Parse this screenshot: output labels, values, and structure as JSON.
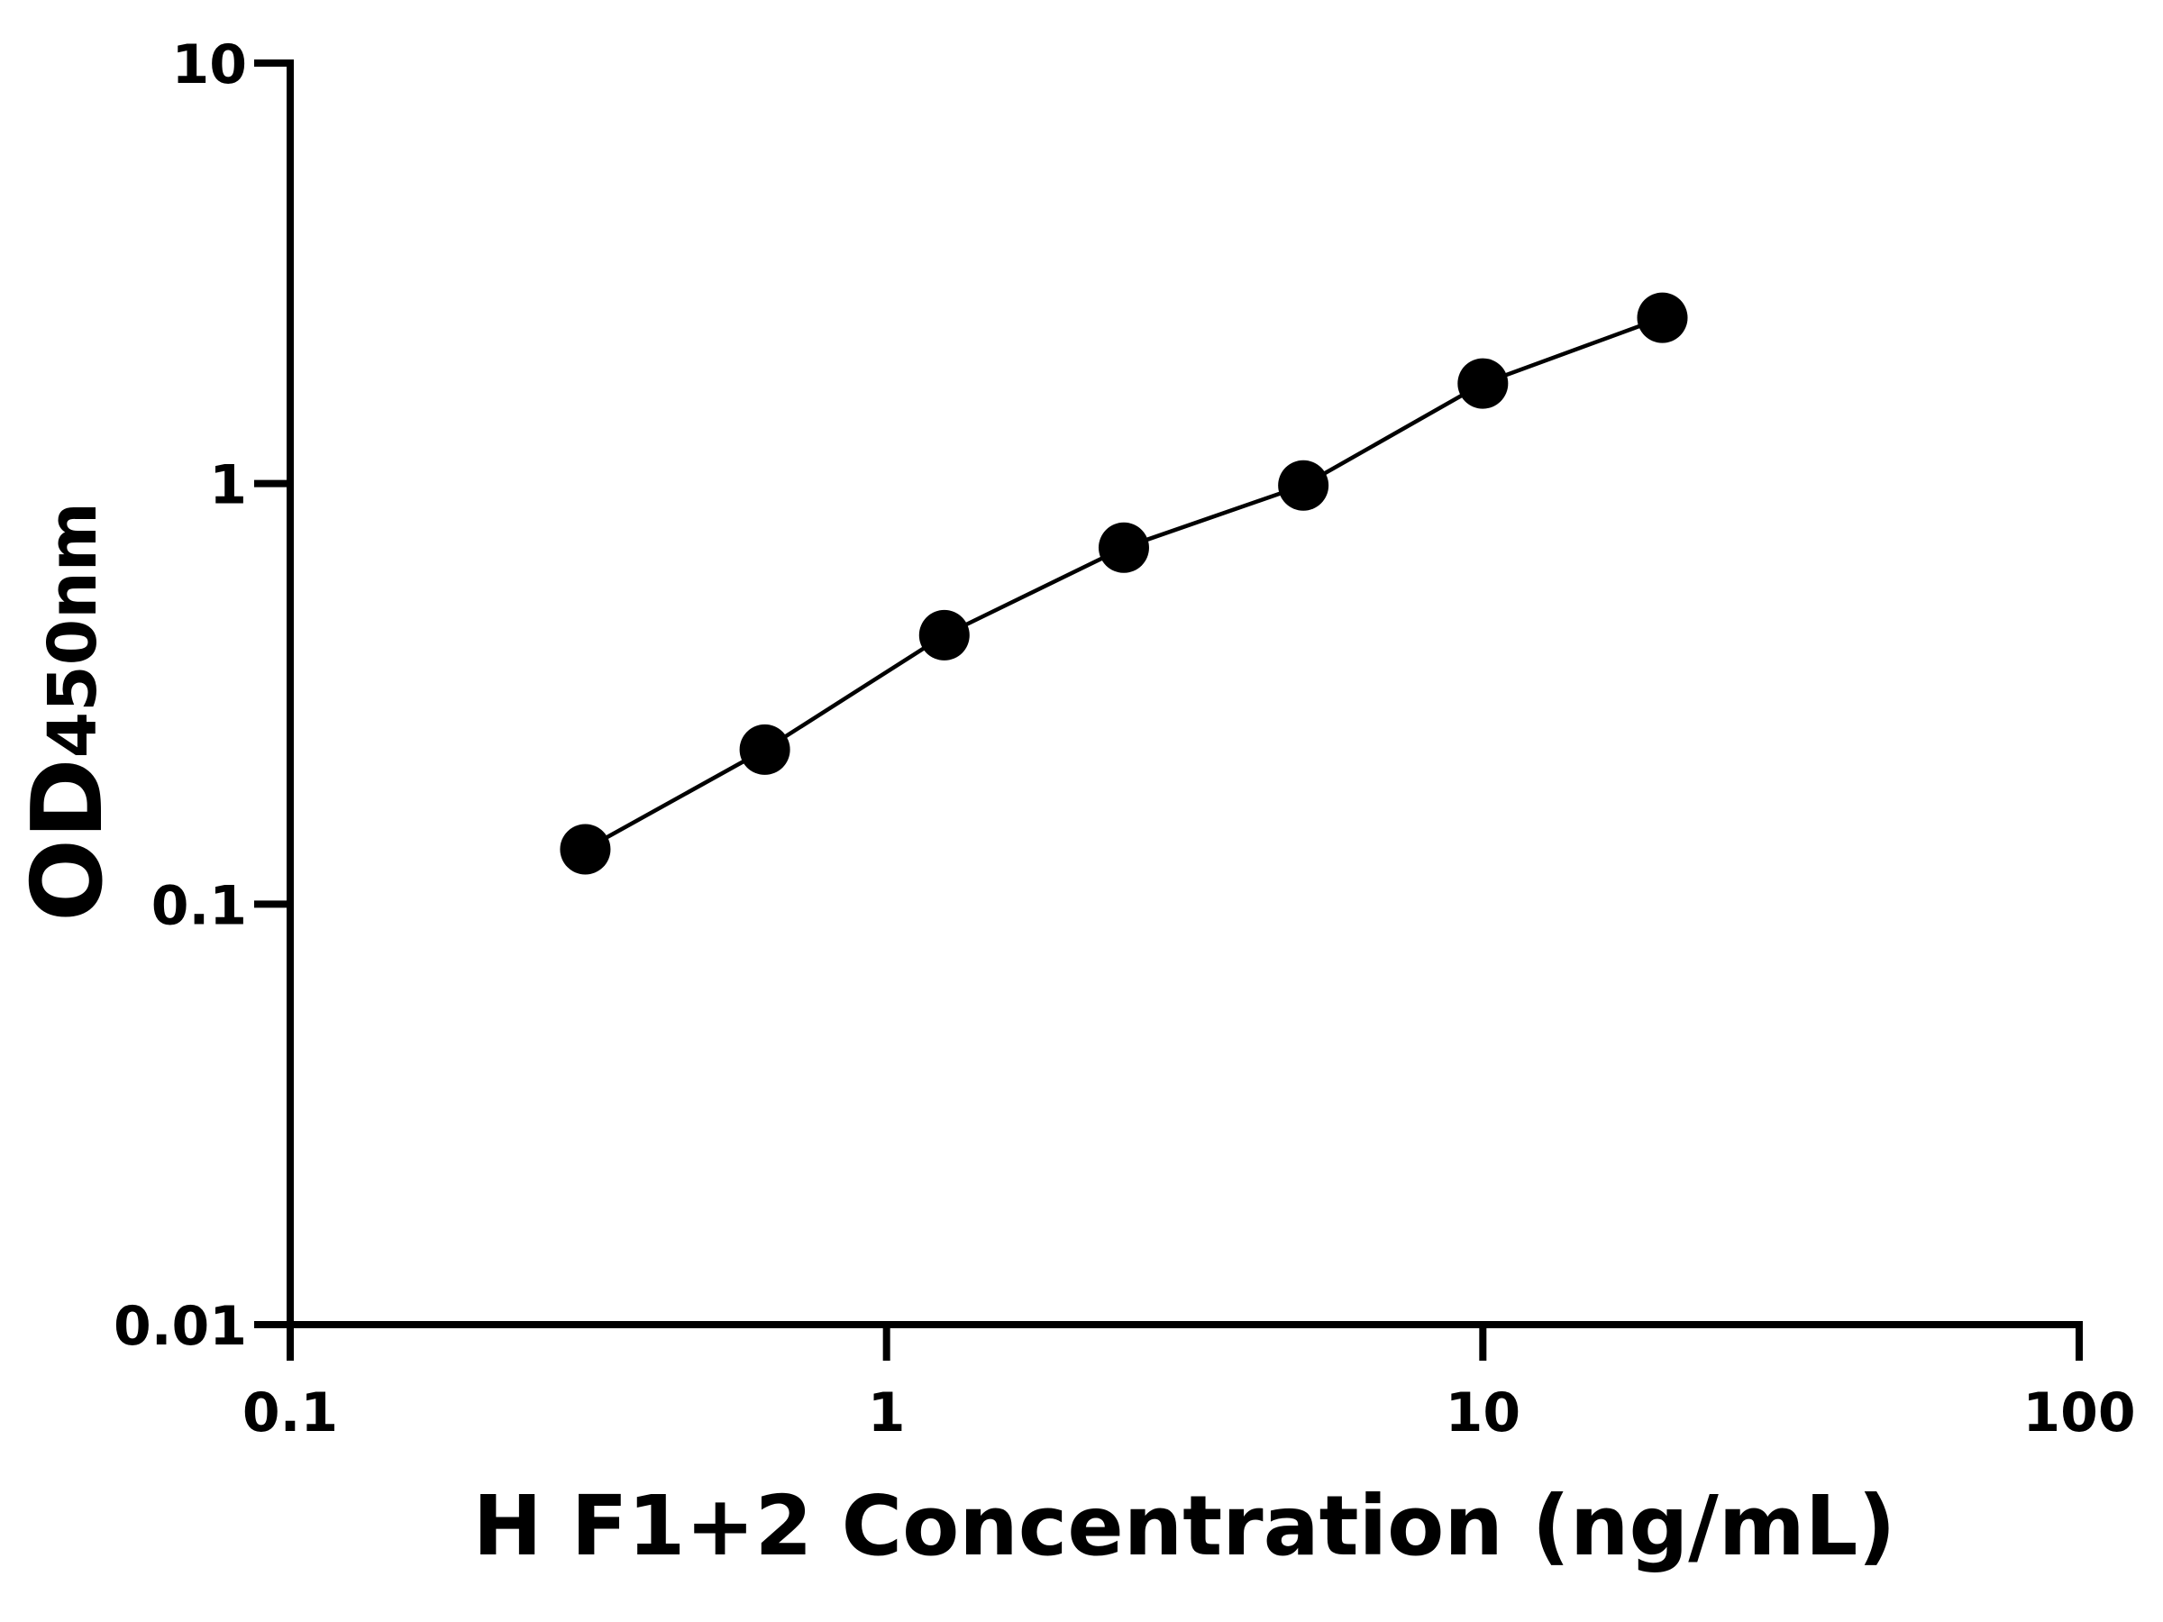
{
  "chart_data": {
    "type": "scatter",
    "x_label": "H F1+2 Concentration (ng/mL)",
    "y_label": "OD",
    "y_label_subscript": "450nm",
    "x": [
      0.3125,
      0.625,
      1.25,
      2.5,
      5,
      10,
      20
    ],
    "series": [
      {
        "color": "#000000",
        "values": [
          0.135,
          0.233,
          0.436,
          0.704,
          0.99,
          1.73,
          2.48
        ]
      }
    ],
    "xlim": [
      0.1,
      100
    ],
    "ylim": [
      0.01,
      10
    ],
    "xticks": [
      0.1,
      1,
      10,
      100
    ],
    "yticks": [
      0.01,
      0.1,
      1,
      10
    ],
    "x_log": true,
    "y_log": true,
    "connect_points": true
  }
}
